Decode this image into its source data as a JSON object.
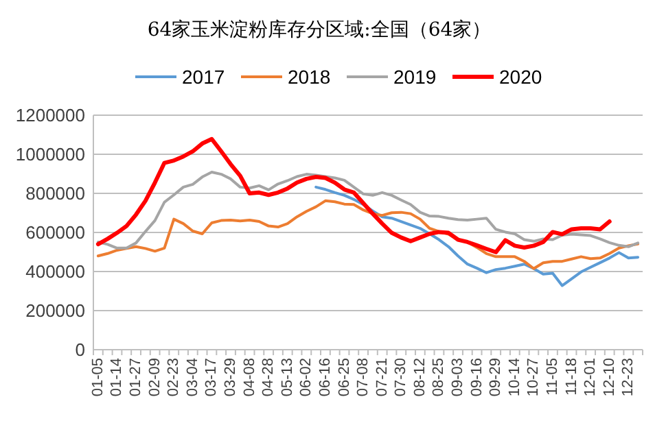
{
  "chart_data": {
    "type": "line",
    "title": "64家玉米淀粉库存分区域:全国（64家）",
    "categories": [
      "01-05",
      null,
      "01-14",
      null,
      "01-27",
      null,
      "02-09",
      null,
      "02-23",
      null,
      "03-04",
      null,
      "03-17",
      null,
      "03-29",
      null,
      "04-08",
      null,
      "04-28",
      null,
      "05-13",
      null,
      "06-02",
      null,
      "06-16",
      null,
      "06-25",
      null,
      "07-08",
      null,
      "07-21",
      null,
      "07-30",
      null,
      "08-12",
      null,
      "08-25",
      null,
      "09-03",
      null,
      "09-16",
      null,
      "09-29",
      null,
      "10-14",
      null,
      "10-27",
      null,
      "11-05",
      null,
      "11-18",
      null,
      "12-01",
      null,
      "12-10",
      null,
      "12-23",
      null
    ],
    "series": [
      {
        "name": "2017",
        "color": "#5b9bd5",
        "values": [
          null,
          null,
          null,
          null,
          null,
          null,
          null,
          null,
          null,
          null,
          null,
          null,
          null,
          null,
          null,
          null,
          null,
          null,
          null,
          null,
          null,
          null,
          null,
          832000,
          820000,
          804000,
          790000,
          769000,
          743000,
          710000,
          680000,
          673000,
          656000,
          638000,
          621000,
          593000,
          563000,
          527000,
          480000,
          438000,
          417000,
          394000,
          410000,
          417000,
          427000,
          438000,
          415000,
          387000,
          391000,
          328000,
          363000,
          398000,
          422000,
          445000,
          469000,
          497000,
          469000,
          473000
        ]
      },
      {
        "name": "2018",
        "color": "#ed7d31",
        "values": [
          480000,
          492000,
          509000,
          518000,
          527000,
          518000,
          504000,
          520000,
          668000,
          645000,
          607000,
          593000,
          649000,
          661000,
          663000,
          659000,
          663000,
          656000,
          633000,
          628000,
          645000,
          680000,
          708000,
          731000,
          762000,
          757000,
          745000,
          743000,
          715000,
          696000,
          687000,
          701000,
          703000,
          696000,
          668000,
          621000,
          605000,
          591000,
          563000,
          551000,
          523000,
          492000,
          476000,
          476000,
          476000,
          452000,
          415000,
          445000,
          452000,
          452000,
          464000,
          476000,
          466000,
          469000,
          492000,
          520000,
          532000,
          541000
        ]
      },
      {
        "name": "2019",
        "color": "#a5a5a5",
        "values": [
          551000,
          539000,
          520000,
          520000,
          546000,
          605000,
          661000,
          755000,
          792000,
          832000,
          846000,
          884000,
          909000,
          898000,
          874000,
          832000,
          827000,
          839000,
          818000,
          848000,
          865000,
          886000,
          898000,
          893000,
          886000,
          879000,
          867000,
          832000,
          797000,
          790000,
          804000,
          790000,
          766000,
          743000,
          703000,
          684000,
          682000,
          673000,
          666000,
          663000,
          668000,
          673000,
          616000,
          602000,
          593000,
          563000,
          555000,
          567000,
          563000,
          586000,
          591000,
          588000,
          584000,
          567000,
          548000,
          534000,
          527000,
          546000
        ]
      },
      {
        "name": "2020",
        "color": "#ff0000",
        "values": [
          540000,
          567000,
          598000,
          633000,
          691000,
          762000,
          855000,
          956000,
          968000,
          989000,
          1015000,
          1055000,
          1078000,
          1015000,
          949000,
          890000,
          800000,
          804000,
          792000,
          804000,
          825000,
          855000,
          874000,
          884000,
          879000,
          855000,
          820000,
          804000,
          750000,
          696000,
          645000,
          598000,
          574000,
          555000,
          574000,
          593000,
          602000,
          598000,
          563000,
          551000,
          534000,
          516000,
          499000,
          560000,
          532000,
          523000,
          532000,
          551000,
          602000,
          591000,
          616000,
          621000,
          621000,
          616000,
          656000,
          null,
          null,
          null
        ]
      }
    ],
    "ylim": [
      0,
      1200000
    ],
    "yticks": [
      0,
      200000,
      400000,
      600000,
      800000,
      1000000,
      1200000
    ],
    "grid": "y",
    "legend": "top",
    "marker": "none",
    "line_style": "solid"
  }
}
